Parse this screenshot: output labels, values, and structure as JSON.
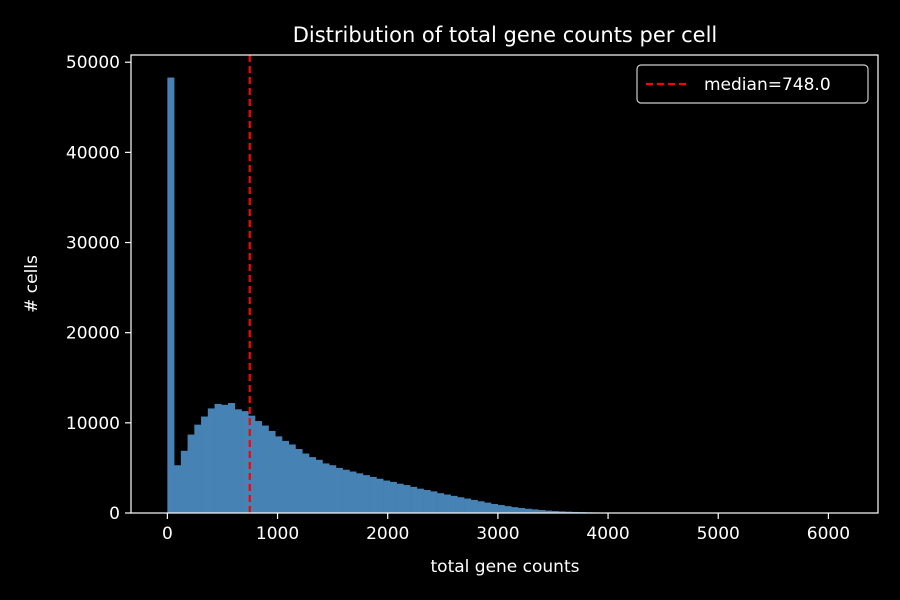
{
  "chart_data": {
    "type": "bar",
    "title": "Distribution of total gene counts per cell",
    "xlabel": "total gene counts",
    "ylabel": "# cells",
    "xlim": [
      -330,
      6450
    ],
    "ylim": [
      0,
      50800
    ],
    "xticks": [
      0,
      1000,
      2000,
      3000,
      4000,
      5000,
      6000
    ],
    "yticks": [
      0,
      10000,
      20000,
      30000,
      40000,
      50000
    ],
    "bin_width": 61.2,
    "bin_start": 0,
    "series": [
      {
        "values": [
          48300,
          5300,
          6900,
          8700,
          9800,
          10700,
          11600,
          12100,
          12000,
          12200,
          11500,
          11300,
          10800,
          10200,
          9700,
          9100,
          8500,
          8000,
          7600,
          7100,
          6600,
          6200,
          5900,
          5500,
          5300,
          5000,
          4800,
          4600,
          4400,
          4200,
          4000,
          3800,
          3600,
          3450,
          3250,
          3100,
          2900,
          2700,
          2550,
          2400,
          2200,
          2050,
          1900,
          1750,
          1600,
          1450,
          1300,
          1150,
          1000,
          880,
          760,
          650,
          560,
          470,
          400,
          330,
          270,
          220,
          180,
          150,
          120,
          100,
          80,
          65,
          50,
          40,
          30,
          25,
          20,
          15,
          12,
          10,
          8,
          6,
          5,
          4,
          3,
          3,
          2,
          2,
          2,
          1,
          1,
          1,
          1,
          1,
          1,
          1,
          0,
          0,
          0,
          0,
          0,
          0,
          0,
          0,
          0,
          0,
          0,
          1
        ]
      }
    ],
    "median": 748.0,
    "legend": {
      "label": "median=748.0",
      "position": "top-right"
    },
    "colors": {
      "bars": "#4682b4",
      "median_line": "#ff0000",
      "background": "#000000",
      "axes": "#ffffff"
    },
    "grid": false
  }
}
